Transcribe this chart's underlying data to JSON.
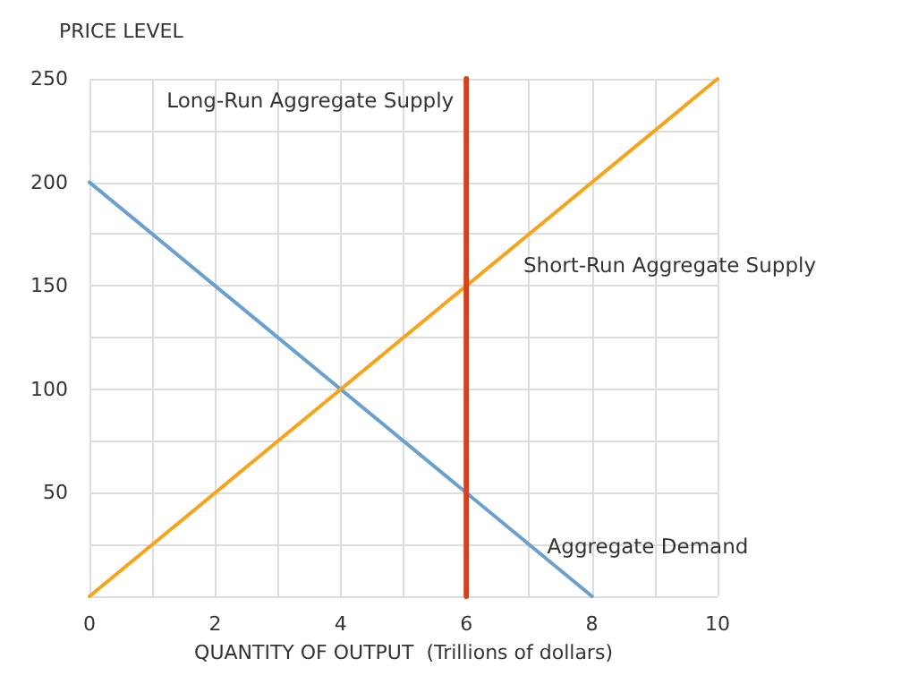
{
  "chart_data": {
    "type": "line",
    "xlabel": "QUANTITY OF OUTPUT  (Trillions of dollars)",
    "ylabel": "PRICE LEVEL",
    "series": [
      {
        "name": "Aggregate Demand",
        "color": "#6a9fd0",
        "x": [
          0,
          8
        ],
        "values": [
          200,
          0
        ]
      },
      {
        "name": "Short-Run Aggregate Supply",
        "color": "#f7a41d",
        "x": [
          0,
          10
        ],
        "values": [
          0,
          250
        ]
      },
      {
        "name": "Long-Run Aggregate Supply",
        "color": "#d8401c",
        "x": [
          6,
          6
        ],
        "values": [
          0,
          250
        ]
      }
    ],
    "xlim": [
      0,
      10
    ],
    "ylim": [
      0,
      250
    ],
    "xticks": [
      0,
      {
        "value": 1,
        "label": null
      },
      2,
      {
        "value": 3,
        "label": null
      },
      4,
      {
        "value": 5,
        "label": null
      },
      6,
      {
        "value": 7,
        "label": null
      },
      8,
      {
        "value": 9,
        "label": null
      },
      10
    ],
    "yticks": [
      {
        "value": 0,
        "label": null
      },
      {
        "value": 25,
        "label": null
      },
      50,
      {
        "value": 75,
        "label": null
      },
      100,
      {
        "value": 125,
        "label": null
      },
      150,
      {
        "value": 175,
        "label": null
      },
      200,
      {
        "value": 225,
        "label": null
      },
      250
    ],
    "grid": true,
    "legend": false,
    "marker": "none",
    "line_style": "solid"
  }
}
